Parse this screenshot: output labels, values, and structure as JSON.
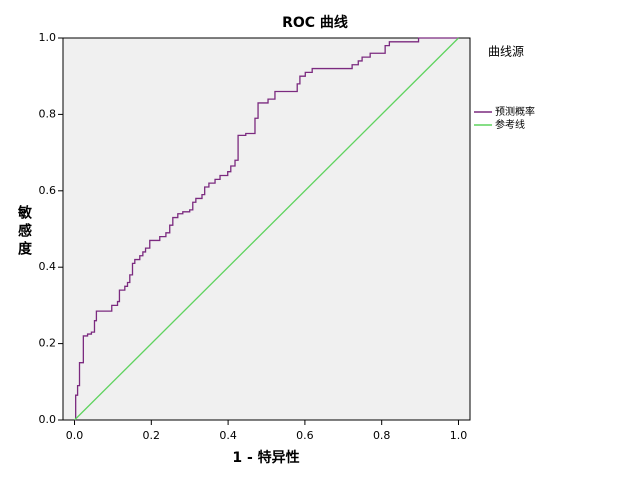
{
  "chart_data": {
    "type": "line",
    "title": "ROC 曲线",
    "x_label": "1 - 特异性",
    "y_label": "敏感度",
    "legend_title": "曲线源",
    "legend": "right",
    "background": "#f0f0f0",
    "xlim": [
      -0.03,
      1.03
    ],
    "ylim": [
      0,
      1.0
    ],
    "xticks": [
      {
        "value": 0,
        "label": "0.0"
      },
      {
        "value": 0.2,
        "label": "0.2"
      },
      {
        "value": 0.4,
        "label": "0.4"
      },
      {
        "value": 0.6,
        "label": "0.6"
      },
      {
        "value": 0.8,
        "label": "0.8"
      },
      {
        "value": 1.0,
        "label": "1.0"
      }
    ],
    "yticks": [
      {
        "value": 0,
        "label": "0.0"
      },
      {
        "value": 0.2,
        "label": "0.2"
      },
      {
        "value": 0.4,
        "label": "0.4"
      },
      {
        "value": 0.6,
        "label": "0.6"
      },
      {
        "value": 0.8,
        "label": "0.8"
      },
      {
        "value": 1.0,
        "label": "1.0"
      }
    ],
    "series": [
      {
        "name": "预测概率",
        "color": "#7b2a7f",
        "x": [
          0,
          0.003,
          0.003,
          0.008,
          0.008,
          0.013,
          0.013,
          0.023,
          0.023,
          0.034,
          0.034,
          0.044,
          0.044,
          0.052,
          0.052,
          0.057,
          0.057,
          0.097,
          0.097,
          0.112,
          0.112,
          0.117,
          0.117,
          0.131,
          0.131,
          0.138,
          0.138,
          0.144,
          0.144,
          0.151,
          0.151,
          0.157,
          0.157,
          0.17,
          0.17,
          0.178,
          0.178,
          0.185,
          0.185,
          0.196,
          0.196,
          0.222,
          0.222,
          0.238,
          0.238,
          0.248,
          0.248,
          0.256,
          0.256,
          0.269,
          0.269,
          0.282,
          0.282,
          0.3,
          0.3,
          0.308,
          0.308,
          0.316,
          0.316,
          0.332,
          0.332,
          0.339,
          0.339,
          0.35,
          0.35,
          0.366,
          0.366,
          0.379,
          0.379,
          0.399,
          0.399,
          0.407,
          0.407,
          0.418,
          0.418,
          0.426,
          0.426,
          0.446,
          0.446,
          0.47,
          0.47,
          0.478,
          0.478,
          0.504,
          0.504,
          0.522,
          0.522,
          0.58,
          0.58,
          0.587,
          0.587,
          0.601,
          0.601,
          0.619,
          0.619,
          0.723,
          0.723,
          0.739,
          0.739,
          0.749,
          0.749,
          0.77,
          0.77,
          0.809,
          0.809,
          0.82,
          0.82,
          0.896,
          0.896,
          1.0
        ],
        "values": [
          0,
          0,
          0.065,
          0.065,
          0.09,
          0.09,
          0.15,
          0.15,
          0.22,
          0.22,
          0.225,
          0.225,
          0.23,
          0.23,
          0.26,
          0.26,
          0.285,
          0.285,
          0.3,
          0.3,
          0.31,
          0.31,
          0.34,
          0.34,
          0.35,
          0.35,
          0.36,
          0.36,
          0.38,
          0.38,
          0.41,
          0.41,
          0.42,
          0.42,
          0.43,
          0.43,
          0.44,
          0.44,
          0.45,
          0.45,
          0.47,
          0.47,
          0.48,
          0.48,
          0.49,
          0.49,
          0.51,
          0.51,
          0.53,
          0.53,
          0.54,
          0.54,
          0.545,
          0.545,
          0.55,
          0.55,
          0.57,
          0.57,
          0.58,
          0.58,
          0.59,
          0.59,
          0.61,
          0.61,
          0.62,
          0.62,
          0.63,
          0.63,
          0.64,
          0.64,
          0.65,
          0.65,
          0.665,
          0.665,
          0.68,
          0.68,
          0.745,
          0.745,
          0.75,
          0.75,
          0.79,
          0.79,
          0.83,
          0.83,
          0.84,
          0.84,
          0.86,
          0.86,
          0.88,
          0.88,
          0.9,
          0.9,
          0.91,
          0.91,
          0.92,
          0.92,
          0.93,
          0.93,
          0.94,
          0.94,
          0.95,
          0.95,
          0.96,
          0.96,
          0.98,
          0.98,
          0.99,
          0.99,
          1.0,
          1.0
        ]
      },
      {
        "name": "参考线",
        "color": "#5fd35f",
        "x": [
          0,
          1.0
        ],
        "values": [
          0,
          1.0
        ]
      }
    ]
  }
}
